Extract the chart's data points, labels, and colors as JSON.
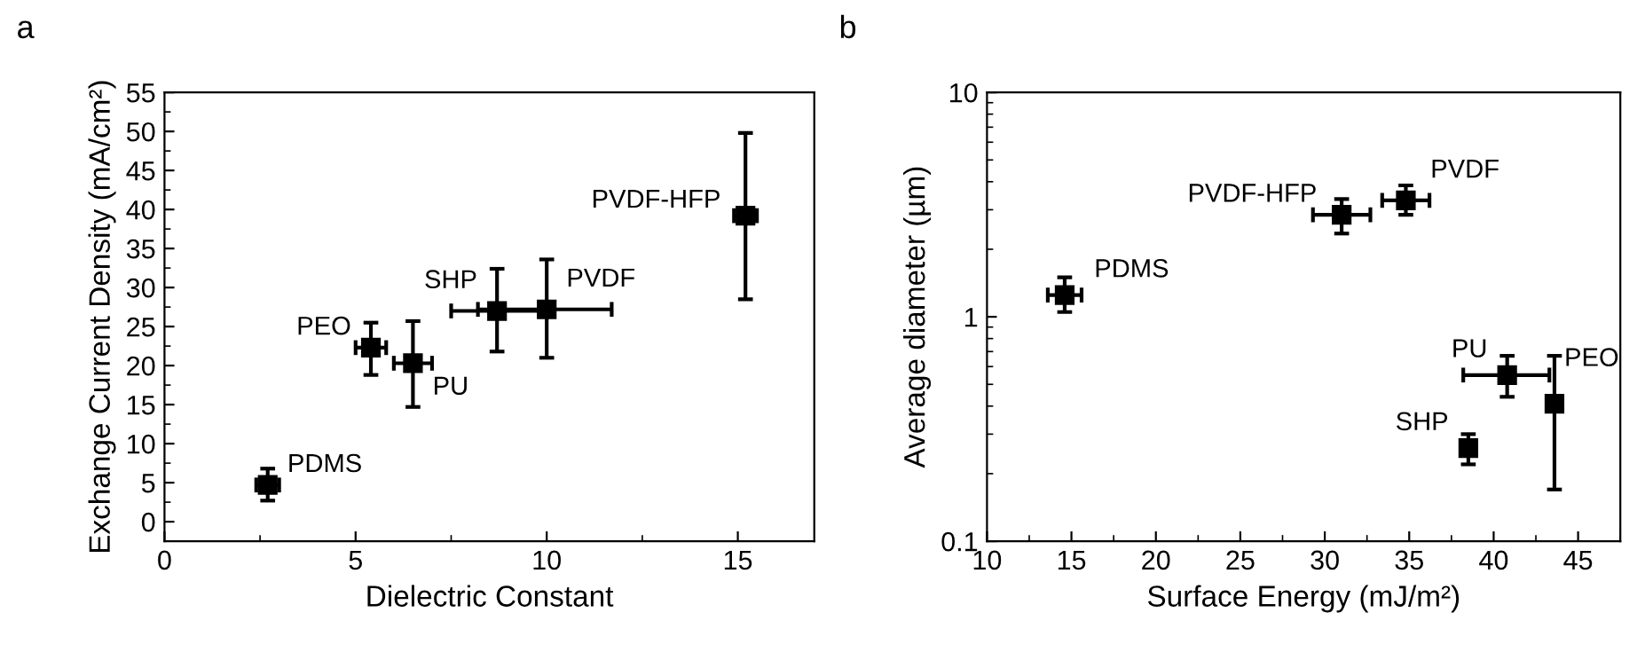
{
  "chart_data": [
    {
      "type": "scatter",
      "title": "a",
      "xlabel": "Dielectric Constant",
      "ylabel": "Exchange Current Density (mA/cm²)",
      "x": [
        2.7,
        5.4,
        6.5,
        8.7,
        10.0,
        15.2
      ],
      "series": [
        {
          "color": "#000000",
          "values": [
            4.7,
            22.3,
            20.3,
            27.0,
            27.2,
            39.2
          ],
          "errors": [
            [
              2.7,
              6.8
            ],
            [
              18.8,
              25.5
            ],
            [
              14.7,
              25.7
            ],
            [
              21.8,
              32.4
            ],
            [
              21.0,
              33.6
            ],
            [
              28.5,
              49.8
            ]
          ],
          "xerrors": [
            [
              2.4,
              3.0
            ],
            [
              5.0,
              5.8
            ],
            [
              6.0,
              7.0
            ],
            [
              7.5,
              9.9
            ],
            [
              8.2,
              11.7
            ],
            [
              14.9,
              15.5
            ]
          ]
        }
      ],
      "marker": "square",
      "xlim": [
        0,
        17
      ],
      "ylim": [
        -2.5,
        55
      ],
      "xticks": [
        0,
        5,
        10,
        15
      ],
      "yticks": [
        0,
        5,
        10,
        15,
        20,
        25,
        30,
        35,
        40,
        45,
        50,
        55
      ],
      "grid": false,
      "legend": false,
      "annotations": [
        {
          "text": "PDMS",
          "x": 2.7,
          "y": 4.7
        },
        {
          "text": "PEO",
          "x": 5.4,
          "y": 22.3
        },
        {
          "text": "PU",
          "x": 6.5,
          "y": 20.3
        },
        {
          "text": "SHP",
          "x": 8.7,
          "y": 27.0
        },
        {
          "text": "PVDF",
          "x": 10.0,
          "y": 27.2
        },
        {
          "text": "PVDF-HFP",
          "x": 15.2,
          "y": 39.2
        }
      ]
    },
    {
      "type": "scatter",
      "title": "b",
      "xlabel": "Surface Energy (mJ/m²)",
      "ylabel": "Average diameter (µm)",
      "log": "y",
      "x": [
        14.6,
        31.0,
        34.8,
        40.8,
        43.6,
        38.5
      ],
      "series": [
        {
          "color": "#000000",
          "values": [
            1.25,
            2.85,
            3.3,
            0.55,
            0.41,
            0.26
          ],
          "errors": [
            [
              1.05,
              1.5
            ],
            [
              2.35,
              3.35
            ],
            [
              2.85,
              3.85
            ],
            [
              0.44,
              0.67
            ],
            [
              0.17,
              0.67
            ],
            [
              0.22,
              0.3
            ]
          ],
          "xerrors": [
            [
              13.6,
              15.6
            ],
            [
              29.3,
              32.7
            ],
            [
              33.4,
              36.2
            ],
            [
              38.2,
              43.3
            ],
            null,
            null
          ]
        }
      ],
      "marker": "square",
      "xlim": [
        10,
        47.5
      ],
      "ylim": [
        0.1,
        10
      ],
      "xticks": [
        10,
        15,
        20,
        25,
        30,
        35,
        40,
        45
      ],
      "yticks": [
        0.1,
        1,
        10
      ],
      "grid": false,
      "legend": false,
      "annotations": [
        {
          "text": "PDMS",
          "x": 14.6,
          "y": 1.25
        },
        {
          "text": "PVDF-HFP",
          "x": 31.0,
          "y": 2.85
        },
        {
          "text": "PVDF",
          "x": 34.8,
          "y": 3.3
        },
        {
          "text": "PU",
          "x": 40.8,
          "y": 0.55
        },
        {
          "text": "PEO",
          "x": 43.6,
          "y": 0.41
        },
        {
          "text": "SHP",
          "x": 38.5,
          "y": 0.26
        }
      ]
    }
  ]
}
